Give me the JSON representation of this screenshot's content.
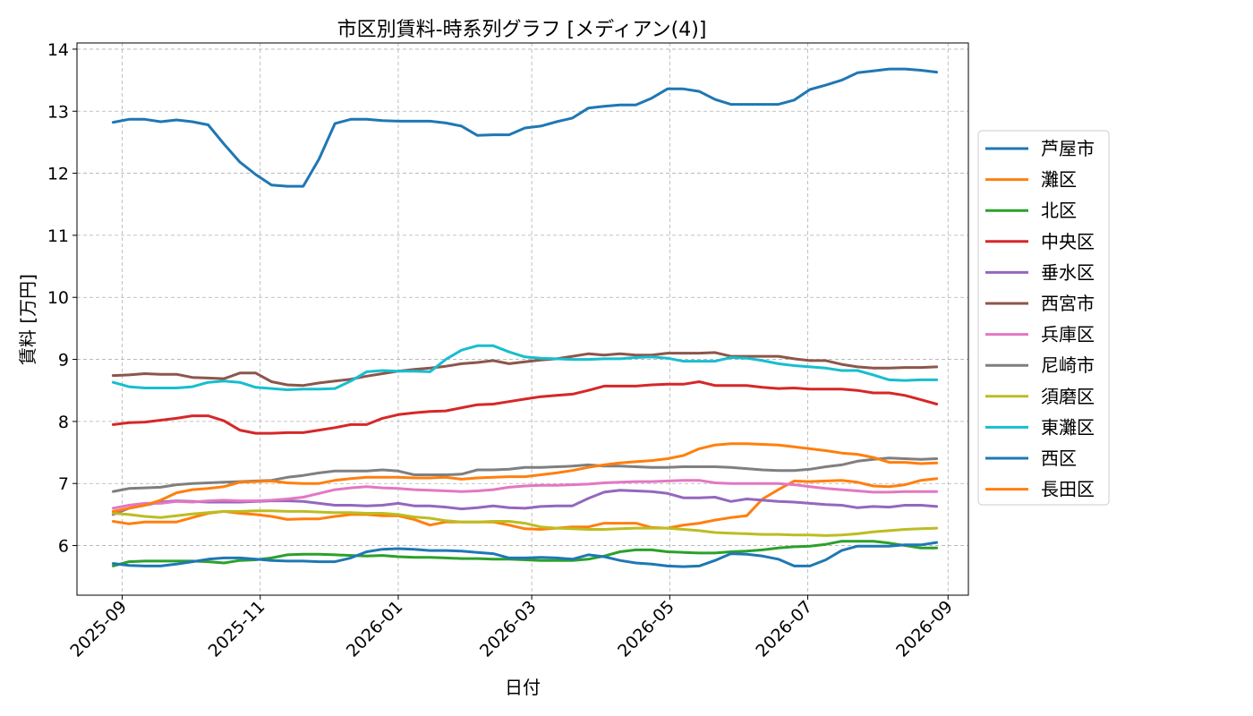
{
  "chart_data": {
    "type": "line",
    "title": "市区別賃料-時系列グラフ [メディアン(4)]",
    "xlabel": "日付",
    "ylabel": "賃料 [万円]",
    "ylim": [
      5.2,
      14.1
    ],
    "xlim": [
      "2025-08-12",
      "2026-09-10"
    ],
    "grid": true,
    "legend_position": "right",
    "yticks": [
      6,
      7,
      8,
      9,
      10,
      11,
      12,
      13,
      14
    ],
    "xticks": [
      "2025-09",
      "2025-11",
      "2026-01",
      "2026-03",
      "2026-05",
      "2026-07",
      "2026-09"
    ],
    "x": [
      "2025-08-28",
      "2025-09-04",
      "2025-09-11",
      "2025-09-18",
      "2025-09-25",
      "2025-10-02",
      "2025-10-09",
      "2025-10-16",
      "2025-10-23",
      "2025-10-30",
      "2025-11-06",
      "2025-11-13",
      "2025-11-20",
      "2025-11-27",
      "2025-12-04",
      "2025-12-11",
      "2025-12-18",
      "2025-12-25",
      "2026-01-01",
      "2026-01-08",
      "2026-01-15",
      "2026-01-22",
      "2026-01-29",
      "2026-02-05",
      "2026-02-12",
      "2026-02-19",
      "2026-02-26",
      "2026-03-05",
      "2026-03-12",
      "2026-03-19",
      "2026-03-26",
      "2026-04-02",
      "2026-04-09",
      "2026-04-16",
      "2026-04-23",
      "2026-04-30",
      "2026-05-07",
      "2026-05-14",
      "2026-05-21",
      "2026-05-28",
      "2026-06-04",
      "2026-06-11",
      "2026-06-18",
      "2026-06-25",
      "2026-07-02",
      "2026-07-09",
      "2026-07-16",
      "2026-07-23",
      "2026-07-30",
      "2026-08-06",
      "2026-08-13",
      "2026-08-20",
      "2026-08-27"
    ],
    "series": [
      {
        "name": "芦屋市",
        "color": "#1f77b4",
        "values": [
          12.82,
          12.87,
          12.87,
          12.83,
          12.86,
          12.83,
          12.78,
          12.47,
          12.18,
          11.98,
          11.81,
          11.79,
          11.79,
          12.23,
          12.8,
          12.87,
          12.87,
          12.85,
          12.84,
          12.84,
          12.84,
          12.81,
          12.76,
          12.61,
          12.62,
          12.62,
          12.73,
          12.76,
          12.83,
          12.89,
          13.05,
          13.08,
          13.1,
          13.1,
          13.21,
          13.36,
          13.36,
          13.32,
          13.19,
          13.11,
          13.11,
          13.11,
          13.11,
          13.18,
          13.35,
          13.42,
          13.5,
          13.62,
          13.65,
          13.68,
          13.68,
          13.66,
          13.63
        ]
      },
      {
        "name": "灘区",
        "color": "#ff7f0e",
        "values": [
          6.39,
          6.35,
          6.38,
          6.38,
          6.38,
          6.45,
          6.52,
          6.55,
          6.52,
          6.5,
          6.47,
          6.42,
          6.43,
          6.43,
          6.47,
          6.5,
          6.5,
          6.48,
          6.48,
          6.42,
          6.33,
          6.38,
          6.38,
          6.38,
          6.38,
          6.33,
          6.27,
          6.26,
          6.28,
          6.3,
          6.3,
          6.36,
          6.36,
          6.36,
          6.29,
          6.28,
          6.33,
          6.36,
          6.41,
          6.45,
          6.48,
          6.75,
          6.9,
          7.04,
          7.03,
          7.04,
          7.05,
          7.02,
          6.96,
          6.95,
          6.98,
          7.05,
          7.08
        ]
      },
      {
        "name": "北区",
        "color": "#2ca02c",
        "values": [
          5.67,
          5.74,
          5.75,
          5.75,
          5.75,
          5.75,
          5.74,
          5.72,
          5.76,
          5.77,
          5.8,
          5.85,
          5.86,
          5.86,
          5.85,
          5.84,
          5.83,
          5.84,
          5.82,
          5.81,
          5.81,
          5.8,
          5.79,
          5.79,
          5.78,
          5.78,
          5.77,
          5.76,
          5.76,
          5.76,
          5.78,
          5.83,
          5.9,
          5.93,
          5.93,
          5.9,
          5.89,
          5.88,
          5.88,
          5.9,
          5.91,
          5.93,
          5.96,
          5.98,
          5.99,
          6.02,
          6.07,
          6.07,
          6.07,
          6.04,
          6.0,
          5.96,
          5.96
        ]
      },
      {
        "name": "中央区",
        "color": "#d62728",
        "values": [
          7.95,
          7.98,
          7.99,
          8.02,
          8.05,
          8.09,
          8.09,
          8.01,
          7.86,
          7.81,
          7.81,
          7.82,
          7.82,
          7.86,
          7.9,
          7.95,
          7.95,
          8.05,
          8.11,
          8.14,
          8.16,
          8.17,
          8.22,
          8.27,
          8.28,
          8.32,
          8.36,
          8.4,
          8.42,
          8.44,
          8.5,
          8.57,
          8.57,
          8.57,
          8.59,
          8.6,
          8.6,
          8.64,
          8.58,
          8.58,
          8.58,
          8.55,
          8.53,
          8.54,
          8.52,
          8.52,
          8.52,
          8.5,
          8.46,
          8.46,
          8.42,
          8.35,
          8.28
        ]
      },
      {
        "name": "垂水区",
        "color": "#9467bd",
        "values": [
          6.5,
          6.6,
          6.65,
          6.7,
          6.72,
          6.71,
          6.7,
          6.7,
          6.7,
          6.71,
          6.72,
          6.72,
          6.71,
          6.68,
          6.65,
          6.65,
          6.64,
          6.65,
          6.68,
          6.64,
          6.64,
          6.62,
          6.59,
          6.61,
          6.64,
          6.61,
          6.6,
          6.63,
          6.64,
          6.64,
          6.76,
          6.86,
          6.89,
          6.88,
          6.87,
          6.84,
          6.77,
          6.77,
          6.78,
          6.71,
          6.75,
          6.73,
          6.71,
          6.7,
          6.68,
          6.66,
          6.65,
          6.61,
          6.63,
          6.62,
          6.65,
          6.65,
          6.63
        ]
      },
      {
        "name": "西宮市",
        "color": "#8c564b",
        "values": [
          8.74,
          8.75,
          8.77,
          8.76,
          8.76,
          8.71,
          8.7,
          8.69,
          8.78,
          8.78,
          8.64,
          8.59,
          8.58,
          8.62,
          8.65,
          8.68,
          8.73,
          8.77,
          8.81,
          8.84,
          8.86,
          8.89,
          8.93,
          8.95,
          8.98,
          8.93,
          8.96,
          8.99,
          9.01,
          9.05,
          9.09,
          9.07,
          9.09,
          9.07,
          9.07,
          9.1,
          9.1,
          9.1,
          9.11,
          9.05,
          9.05,
          9.05,
          9.05,
          9.01,
          8.98,
          8.98,
          8.92,
          8.88,
          8.86,
          8.86,
          8.87,
          8.87,
          8.88
        ]
      },
      {
        "name": "兵庫区",
        "color": "#e377c2",
        "values": [
          6.6,
          6.65,
          6.68,
          6.68,
          6.71,
          6.7,
          6.72,
          6.73,
          6.72,
          6.72,
          6.73,
          6.75,
          6.78,
          6.84,
          6.9,
          6.93,
          6.95,
          6.93,
          6.92,
          6.9,
          6.89,
          6.88,
          6.87,
          6.88,
          6.9,
          6.94,
          6.96,
          6.97,
          6.97,
          6.98,
          6.99,
          7.01,
          7.02,
          7.03,
          7.03,
          7.04,
          7.05,
          7.05,
          7.01,
          7.0,
          7.0,
          7.0,
          7.0,
          6.98,
          6.95,
          6.92,
          6.9,
          6.88,
          6.86,
          6.86,
          6.87,
          6.87,
          6.87
        ]
      },
      {
        "name": "尼崎市",
        "color": "#7f7f7f",
        "values": [
          6.87,
          6.92,
          6.93,
          6.94,
          6.98,
          7.0,
          7.01,
          7.02,
          7.03,
          7.04,
          7.05,
          7.1,
          7.13,
          7.17,
          7.2,
          7.2,
          7.2,
          7.22,
          7.2,
          7.14,
          7.14,
          7.14,
          7.15,
          7.22,
          7.22,
          7.23,
          7.26,
          7.26,
          7.27,
          7.28,
          7.3,
          7.28,
          7.28,
          7.27,
          7.26,
          7.26,
          7.27,
          7.27,
          7.27,
          7.26,
          7.24,
          7.22,
          7.21,
          7.21,
          7.23,
          7.27,
          7.3,
          7.36,
          7.39,
          7.41,
          7.4,
          7.39,
          7.4
        ]
      },
      {
        "name": "須磨区",
        "color": "#bcbd22",
        "values": [
          6.52,
          6.5,
          6.47,
          6.45,
          6.48,
          6.51,
          6.53,
          6.55,
          6.55,
          6.56,
          6.56,
          6.55,
          6.55,
          6.54,
          6.53,
          6.53,
          6.52,
          6.52,
          6.5,
          6.46,
          6.44,
          6.4,
          6.38,
          6.38,
          6.39,
          6.39,
          6.36,
          6.3,
          6.28,
          6.27,
          6.26,
          6.26,
          6.27,
          6.28,
          6.28,
          6.28,
          6.26,
          6.24,
          6.21,
          6.2,
          6.19,
          6.18,
          6.18,
          6.17,
          6.17,
          6.16,
          6.17,
          6.19,
          6.22,
          6.24,
          6.26,
          6.27,
          6.28
        ]
      },
      {
        "name": "東灘区",
        "color": "#17becf",
        "values": [
          8.63,
          8.56,
          8.54,
          8.54,
          8.54,
          8.56,
          8.63,
          8.65,
          8.63,
          8.55,
          8.53,
          8.51,
          8.52,
          8.52,
          8.53,
          8.65,
          8.8,
          8.82,
          8.81,
          8.81,
          8.8,
          9.0,
          9.15,
          9.22,
          9.22,
          9.12,
          9.04,
          9.02,
          9.01,
          9.0,
          9.0,
          9.01,
          9.01,
          9.03,
          9.04,
          9.02,
          8.97,
          8.97,
          8.97,
          9.03,
          9.02,
          8.98,
          8.93,
          8.9,
          8.88,
          8.86,
          8.82,
          8.82,
          8.75,
          8.67,
          8.66,
          8.67,
          8.67
        ]
      },
      {
        "name": "西区",
        "color": "#1f77b4",
        "values": [
          5.71,
          5.68,
          5.67,
          5.67,
          5.7,
          5.74,
          5.78,
          5.8,
          5.8,
          5.78,
          5.76,
          5.75,
          5.75,
          5.74,
          5.74,
          5.8,
          5.9,
          5.94,
          5.95,
          5.94,
          5.92,
          5.92,
          5.91,
          5.89,
          5.87,
          5.8,
          5.8,
          5.81,
          5.8,
          5.78,
          5.85,
          5.82,
          5.76,
          5.72,
          5.7,
          5.67,
          5.66,
          5.67,
          5.76,
          5.87,
          5.86,
          5.83,
          5.78,
          5.67,
          5.67,
          5.77,
          5.92,
          5.99,
          5.99,
          5.99,
          6.01,
          6.01,
          6.05
        ]
      },
      {
        "name": "長田区",
        "color": "#ff7f0e",
        "values": [
          6.55,
          6.6,
          6.65,
          6.73,
          6.85,
          6.9,
          6.92,
          6.95,
          7.02,
          7.03,
          7.04,
          7.01,
          7.0,
          7.0,
          7.05,
          7.08,
          7.1,
          7.1,
          7.1,
          7.09,
          7.09,
          7.1,
          7.07,
          7.09,
          7.1,
          7.11,
          7.11,
          7.14,
          7.17,
          7.21,
          7.26,
          7.3,
          7.33,
          7.35,
          7.37,
          7.4,
          7.45,
          7.56,
          7.62,
          7.64,
          7.64,
          7.63,
          7.62,
          7.59,
          7.56,
          7.53,
          7.49,
          7.47,
          7.42,
          7.34,
          7.34,
          7.32,
          7.33
        ]
      }
    ]
  }
}
